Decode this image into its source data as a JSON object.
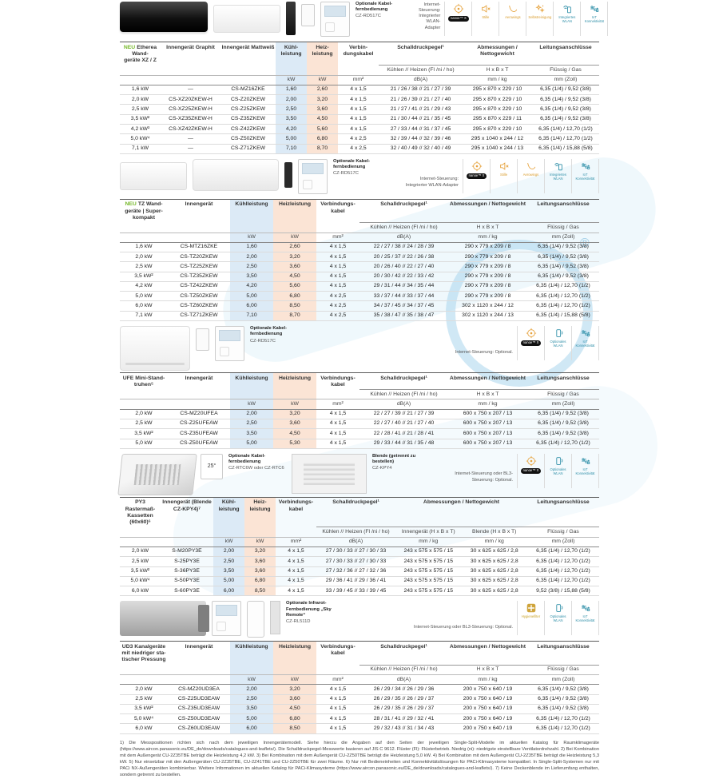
{
  "footnotes": "1) Die Messpositionen richten sich nach dem jeweiligen Innengerätemodell. Siehe hierzu die Angaben auf den Seiten der jeweiligen Single-Split-Modelle im aktuellen Katalog für Raumklimageräte (https://www.aircon.panasonic.eu/DE_de/downloads/catalogues-and-leaflets/). Die Schalldruckpegel-Messwerte basieren auf JIS C 9612. Flüster (Fl): Flüsterbetrieb. Niedrig (ni): niedrigste einstellbare Ventilatordrehzahl. 2) Bei Kombination mit dem Außengerät CU-2Z35TBE beträgt die Heizleistung 4,2 kW. 3) Bei Kombination mit dem Außengerät CU-2Z50TBE beträgt die Heizleistung 5,0 kW. 4) Bei Kombination mit dem Außengerät CU-2Z35TBE beträgt die Heizleistung 5,3 kW. 5) Nur einsetzbar mit den Außengeräten CU-2Z35TBE, CU-2Z41TBE und CU-2Z50TBE für zwei Räume. 6) Nur mit Bedieneinheiten und Konnektivitätslösungen für PACi-Klimasysteme kompatibel. In Single-Split-Systemen nur mit PACi NX-Außengeräten kombinierbar. Weitere Informationen im aktuellen Katalog für PACi-Klimasysteme (https://www.aircon.panasonic.eu/DE_de/downloads/catalogues-and-leaflets/). 7) Keine Deckenblende im Lieferumfang enthalten, sondern getrennt zu bestellen.",
  "colors": {
    "neu_green": "#76b82a",
    "cool_blue": "#dceaf6",
    "heat_peach": "#fbe4d5",
    "badge_orange": "#e6a23c",
    "badge_blue": "#2f8fa8",
    "badge_gold": "#cfa43b"
  },
  "sections": [
    {
      "id": "etherea-xz-z",
      "neu": "NEU",
      "title": "Etherea Wand-\ngeräte XZ / Z",
      "strip": [
        {
          "kind": "art",
          "type": "wall-black"
        },
        {
          "kind": "art",
          "type": "wall-white"
        },
        {
          "kind": "art",
          "type": "remote-dark"
        },
        {
          "kind": "art",
          "type": "remote-white-sm"
        },
        {
          "kind": "art",
          "type": "controller"
        },
        {
          "kind": "option",
          "title": "Optionale Kabel-fernbedienung",
          "model": "CZ-RD517C"
        }
      ],
      "note": "Internet-Steuerung:\nIntegrierter WLAN-Adapter",
      "badges": [
        {
          "icon": "target",
          "label": "nanoe™ X",
          "variant": "pill"
        },
        {
          "icon": "speaker-mute",
          "label": "Stille",
          "variant": "orange"
        },
        {
          "icon": "swoosh",
          "label": "Aerowings",
          "variant": "orange"
        },
        {
          "icon": "sparkles",
          "label": "Selbstreinigung",
          "variant": "orange"
        },
        {
          "icon": "remote-wifi",
          "label": "Integriertes WLAN",
          "variant": "blue"
        },
        {
          "icon": "usb",
          "label": "IoT Konnektivität",
          "variant": "blue"
        }
      ],
      "widths": [
        8.5,
        12.5,
        11.5,
        6.5,
        6.5,
        8.5,
        17.5,
        14.5,
        14
      ],
      "hl_blue": [
        3
      ],
      "hl_peach": [
        4
      ],
      "h1": [
        "",
        "Innengerät Graphit",
        "Innengerät Mattweiß",
        "Kühl-leistung",
        "Heiz-leistung",
        "Verbin-dungskabel",
        "Schalldruckpegel¹",
        "Abmessungen / Nettogewicht",
        "Leitungsanschlüsse"
      ],
      "h2": [
        "",
        "",
        "",
        "",
        "",
        "",
        "Kühlen // Heizen (Fl /ni / ho)",
        "H x B x T",
        "Flüssig / Gas"
      ],
      "h3": [
        "",
        "",
        "",
        "kW",
        "kW",
        "mm²",
        "dB(A)",
        "mm / kg",
        "mm (Zoll)"
      ],
      "rows": [
        [
          "1,6 kW",
          "—",
          "CS-MZ16ZKE",
          "1,60",
          "2,60",
          "4 x 1,5",
          "21 / 26 / 38 // 21 / 27 / 39",
          "295 x 870 x 229 / 10",
          "6,35 (1/4) / 9,52 (3/8)"
        ],
        [
          "2,0 kW",
          "CS-XZ20ZKEW-H",
          "CS-Z20ZKEW",
          "2,00",
          "3,20",
          "4 x 1,5",
          "21 / 26 / 39 // 21 / 27 / 40",
          "295 x 870 x 229 / 10",
          "6,35 (1/4) / 9,52 (3/8)"
        ],
        [
          "2,5 kW",
          "CS-XZ25ZKEW-H",
          "CS-Z25ZKEW",
          "2,50",
          "3,60",
          "4 x 1,5",
          "21 / 27 / 41 // 21 / 29 / 43",
          "295 x 870 x 229 / 10",
          "6,35 (1/4) / 9,52 (3/8)"
        ],
        [
          "3,5 kW²",
          "CS-XZ35ZKEW-H",
          "CS-Z35ZKEW",
          "3,50",
          "4,50",
          "4 x 1,5",
          "21 / 30 / 44 // 21 / 35 / 45",
          "295 x 870 x 229 / 11",
          "6,35 (1/4) / 9,52 (3/8)"
        ],
        [
          "4,2 kW³",
          "CS-XZ42ZKEW-H",
          "CS-Z42ZKEW",
          "4,20",
          "5,60",
          "4 x 1,5",
          "27 / 33 / 44 // 31 / 37 / 45",
          "295 x 870 x 229 / 10",
          "6,35 (1/4) / 12,70 (1/2)"
        ],
        [
          "5,0 kW⁴",
          "—",
          "CS-Z50ZKEW",
          "5,00",
          "6,80",
          "4 x 2,5",
          "32 / 39 / 44 // 32 / 39 / 46",
          "295 x 1040 x 244 / 12",
          "6,35 (1/4) / 12,70 (1/2)"
        ],
        [
          "7,1 kW",
          "—",
          "CS-Z71ZKEW",
          "7,10",
          "8,70",
          "4 x 2,5",
          "32 / 40 / 49 // 32 / 40 / 49",
          "295 x 1040 x 244 / 13",
          "6,35 (1/4) / 15,88 (5/8)"
        ]
      ]
    },
    {
      "id": "tz-wandgeraete",
      "neu": "NEU",
      "title": "TZ Wand-\ngeräte | Super-\nkompakt",
      "strip": [
        {
          "kind": "art",
          "type": "wall-white"
        },
        {
          "kind": "art",
          "type": "wall-white-lg"
        },
        {
          "kind": "art",
          "type": "remote-dark-sm"
        },
        {
          "kind": "art",
          "type": "controller"
        },
        {
          "kind": "option",
          "title": "Optionale Kabel-fernbedienung",
          "model": "CZ-RD517C"
        }
      ],
      "note": "Internet-Steuerung:\nIntegrierter WLAN-Adapter",
      "badges": [
        {
          "icon": "target",
          "label": "nanoe™ X",
          "variant": "pill"
        },
        {
          "icon": "speaker-mute",
          "label": "Stille",
          "variant": "orange"
        },
        {
          "icon": "swoosh",
          "label": "Aerowings",
          "variant": "orange"
        },
        {
          "icon": "remote-wifi",
          "label": "Integriertes WLAN",
          "variant": "blue"
        },
        {
          "icon": "usb",
          "label": "IoT Konnektivität",
          "variant": "blue"
        }
      ],
      "widths": [
        10,
        13,
        9,
        9,
        9,
        18.5,
        16.5,
        15
      ],
      "hl_blue": [
        2
      ],
      "hl_peach": [
        3
      ],
      "h1": [
        "",
        "Innengerät",
        "Kühlleistung",
        "Heizleistung",
        "Verbindungs-kabel",
        "Schalldruckpegel¹",
        "Abmessungen / Nettogewicht",
        "Leitungsanschlüsse"
      ],
      "h2": [
        "",
        "",
        "",
        "",
        "",
        "Kühlen // Heizen (Fl /ni / ho)",
        "H x B x T",
        "Flüssig / Gas"
      ],
      "h3": [
        "",
        "",
        "kW",
        "kW",
        "mm²",
        "dB(A)",
        "mm / kg",
        "mm (Zoll)"
      ],
      "rows": [
        [
          "1,6 kW",
          "CS-MTZ16ZKE",
          "1,60",
          "2,60",
          "4 x 1,5",
          "22 / 27 / 38 // 24 / 28 / 39",
          "290 x 779 x 209 / 8",
          "6,35 (1/4) / 9,52 (3/8)"
        ],
        [
          "2,0 kW",
          "CS-TZ20ZKEW",
          "2,00",
          "3,20",
          "4 x 1,5",
          "20 / 25 / 37 // 22 / 26 / 38",
          "290 x 779 x 209 / 8",
          "6,35 (1/4) / 9,52 (3/8)"
        ],
        [
          "2,5 kW",
          "CS-TZ25ZKEW",
          "2,50",
          "3,60",
          "4 x 1,5",
          "20 / 26 / 40 // 22 / 27 / 40",
          "290 x 779 x 209 / 8",
          "6,35 (1/4) / 9,52 (3/8)"
        ],
        [
          "3,5 kW²",
          "CS-TZ35ZKEW",
          "3,50",
          "4,50",
          "4 x 1,5",
          "20 / 30 / 42 // 22 / 33 / 42",
          "290 x 779 x 209 / 8",
          "6,35 (1/4) / 9,52 (3/8)"
        ],
        [
          "4,2 kW",
          "CS-TZ42ZKEW",
          "4,20",
          "5,60",
          "4 x 1,5",
          "29 / 31 / 44 // 34 / 35 / 44",
          "290 x 779 x 209 / 8",
          "6,35 (1/4) / 12,70 (1/2)"
        ],
        [
          "5,0 kW",
          "CS-TZ50ZKEW",
          "5,00",
          "6,80",
          "4 x 2,5",
          "33 / 37 / 44 // 33 / 37 / 44",
          "290 x 779 x 209 / 8",
          "6,35 (1/4) / 12,70 (1/2)"
        ],
        [
          "6,0 kW",
          "CS-TZ60ZKEW",
          "6,00",
          "8,50",
          "4 x 2,5",
          "34 / 37 / 45 // 34 / 37 / 45",
          "302 x 1120 x 244 / 12",
          "6,35 (1/4) / 12,70 (1/2)"
        ],
        [
          "7,1 kW",
          "CS-TZ71ZKEW",
          "7,10",
          "8,70",
          "4 x 2,5",
          "35 / 38 / 47 // 35 / 38 / 47",
          "302 x 1120 x 244 / 13",
          "6,35 (1/4) / 15,88 (5/8)"
        ]
      ]
    },
    {
      "id": "ufe-standtruhen",
      "neu": "",
      "title": "UFE Mini-Stand-\ntruhen⁵",
      "strip": [
        {
          "kind": "art",
          "type": "console"
        },
        {
          "kind": "art",
          "type": "remote-white-sm"
        },
        {
          "kind": "art",
          "type": "controller"
        },
        {
          "kind": "option",
          "title": "Optionale Kabel-fernbedienung",
          "model": "CZ-RD517C"
        }
      ],
      "note": "Internet-Steuerung: Optional.",
      "badges": [
        {
          "icon": "target",
          "label": "nanoe™ X",
          "variant": "pill"
        },
        {
          "icon": "phone-wifi",
          "label": "Optionales WLAN",
          "variant": "blue"
        },
        {
          "icon": "usb",
          "label": "IoT Konnektivität",
          "variant": "blue"
        }
      ],
      "widths": [
        10,
        13,
        9,
        9,
        9,
        18.5,
        16.5,
        15
      ],
      "hl_blue": [
        2
      ],
      "hl_peach": [
        3
      ],
      "h1": [
        "",
        "Innengerät",
        "Kühlleistung",
        "Heizleistung",
        "Verbindungs-kabel",
        "Schalldruckpegel¹",
        "Abmessungen / Nettogewicht",
        "Leitungsanschlüsse"
      ],
      "h2": [
        "",
        "",
        "",
        "",
        "",
        "Kühlen // Heizen (Fl /ni / ho)",
        "H x B x T",
        "Flüssig / Gas"
      ],
      "h3": [
        "",
        "",
        "kW",
        "kW",
        "mm²",
        "dB(A)",
        "mm / kg",
        "mm (Zoll)"
      ],
      "rows": [
        [
          "2,0 kW",
          "CS-MZ20UFEA",
          "2,00",
          "3,20",
          "4 x 1,5",
          "22 / 27 / 39 // 21 / 27 / 39",
          "600 x 750 x 207 / 13",
          "6,35 (1/4) / 9,52 (3/8)"
        ],
        [
          "2,5 kW",
          "CS-Z25UFEAW",
          "2,50",
          "3,60",
          "4 x 1,5",
          "22 / 27 / 40 // 21 / 27 / 40",
          "600 x 750 x 207 / 13",
          "6,35 (1/4) / 9,52 (3/8)"
        ],
        [
          "3,5 kW²",
          "CS-Z35UFEAW",
          "3,50",
          "4,50",
          "4 x 1,5",
          "22 / 28 / 41 // 21 / 28 / 41",
          "600 x 750 x 207 / 13",
          "6,35 (1/4) / 9,52 (3/8)"
        ],
        [
          "5,0 kW",
          "CS-Z50UFEAW",
          "5,00",
          "5,30",
          "4 x 1,5",
          "29 / 33 / 44 // 31 / 35 / 48",
          "600 x 750 x 207 / 13",
          "6,35 (1/4) / 12,70 (1/2)"
        ]
      ]
    },
    {
      "id": "py3-kassetten",
      "neu": "",
      "title": "PY3 Rastermaß-\nKassetten (60x60)⁶",
      "strip": [
        {
          "kind": "art",
          "type": "cassette-iso"
        },
        {
          "kind": "art",
          "type": "thermostat",
          "text": "25°"
        },
        {
          "kind": "option",
          "title": "Optionale Kabel-fernbedienung",
          "model": "CZ-RTC6W oder CZ-RTC6"
        },
        {
          "kind": "art",
          "type": "cassette-panel"
        },
        {
          "kind": "option",
          "title": "Blende (getrennt zu bestellen)",
          "model": "CZ-KPY4"
        }
      ],
      "note": "Internet-Steuerung oder BL3-Steuerung: Optional.",
      "badges": [
        {
          "icon": "target",
          "label": "nanoe™ X",
          "variant": "pill"
        },
        {
          "icon": "phone-wifi",
          "label": "Optionales WLAN",
          "variant": "blue"
        },
        {
          "icon": "usb",
          "label": "IoT Konnektivität",
          "variant": "blue"
        }
      ],
      "widths": [
        8.5,
        11,
        6.5,
        6.5,
        8.5,
        16.5,
        13.75,
        13.75,
        15
      ],
      "hl_blue": [
        2
      ],
      "hl_peach": [
        3
      ],
      "h1": [
        "",
        "Innengerät (Blende CZ-KPY4)⁷",
        "Kühl-leistung",
        "Heiz-leistung",
        "Verbindungs-kabel",
        "Schalldruckpegel¹",
        {
          "t": "Abmessungen / Nettogewicht",
          "s": 2
        },
        "Leitungsanschlüsse"
      ],
      "h2": [
        "",
        "",
        "",
        "",
        "",
        "Kühlen // Heizen (Fl /ni / ho)",
        "Innengerät (H x B x T)",
        "Blende (H x B x T)",
        "Flüssig / Gas"
      ],
      "h3": [
        "",
        "",
        "kW",
        "kW",
        "mm²",
        "dB(A)",
        "mm / kg",
        "mm / kg",
        "mm (Zoll)"
      ],
      "rows": [
        [
          "2,0 kW",
          "S-M20PY3E",
          "2,00",
          "3,20",
          "4 x 1,5",
          "27 / 30 / 33 // 27 / 30 / 33",
          "243 x 575 x 575 / 15",
          "30 x 625 x 625 / 2,8",
          "6,35 (1/4) / 12,70 (1/2)"
        ],
        [
          "2,5 kW",
          "S-25PY3E",
          "2,50",
          "3,60",
          "4 x 1,5",
          "27 / 30 / 33 // 27 / 30 / 33",
          "243 x 575 x 575 / 15",
          "30 x 625 x 625 / 2,8",
          "6,35 (1/4) / 12,70 (1/2)"
        ],
        [
          "3,5 kW²",
          "S-36PY3E",
          "3,50",
          "3,60",
          "4 x 1,5",
          "27 / 32 / 36 // 27 / 32 / 36",
          "243 x 575 x 575 / 15",
          "30 x 625 x 625 / 2,8",
          "6,35 (1/4) / 12,70 (1/2)"
        ],
        [
          "5,0 kW⁴",
          "S-50PY3E",
          "5,00",
          "6,80",
          "4 x 1,5",
          "29 / 36 / 41 // 29 / 36 / 41",
          "243 x 575 x 575 / 15",
          "30 x 625 x 625 / 2,8",
          "6,35 (1/4) / 12,70 (1/2)"
        ],
        [
          "6,0 kW",
          "S-60PY3E",
          "6,00",
          "8,50",
          "4 x 1,5",
          "33 / 39 / 45 // 33 / 39 / 45",
          "243 x 575 x 575 / 15",
          "30 x 625 x 625 / 2,8",
          "9,52 (3/8) / 15,88 (5/8)"
        ]
      ]
    },
    {
      "id": "ud3-kanalgeraete",
      "neu": "",
      "title": "UD3 Kanalgeräte\nmit niedriger sta-\ntischer Pressung",
      "strip": [
        {
          "kind": "art",
          "type": "duct"
        },
        {
          "kind": "art",
          "type": "controller"
        },
        {
          "kind": "art",
          "type": "remote-white"
        },
        {
          "kind": "art",
          "type": "remote-strip"
        },
        {
          "kind": "option",
          "title": "Optionale Infrarot-Fernbedienung „Sky Remote“",
          "model": "CZ-RL511D"
        }
      ],
      "note": "Internet-Steuerung oder BL3-Steuerung: Optional.",
      "badges": [
        {
          "icon": "plus-tile",
          "label": "Hygienefilter",
          "variant": "gold"
        },
        {
          "icon": "phone-wifi",
          "label": "Optionales WLAN",
          "variant": "blue"
        },
        {
          "icon": "usb",
          "label": "IoT Konnektivität",
          "variant": "blue"
        }
      ],
      "widths": [
        10,
        13,
        9,
        9,
        9,
        18.5,
        16.5,
        15
      ],
      "hl_blue": [
        2
      ],
      "hl_peach": [
        3
      ],
      "h1": [
        "",
        "Innengerät",
        "Kühlleistung",
        "Heizleistung",
        "Verbindungs-kabel",
        "Schalldruckpegel¹",
        "Abmessungen / Nettogewicht",
        "Leitungsanschlüsse"
      ],
      "h2": [
        "",
        "",
        "",
        "",
        "",
        "Kühlen // Heizen (Fl /ni / ho)",
        "H x B x T",
        "Flüssig / Gas"
      ],
      "h3": [
        "",
        "",
        "kW",
        "kW",
        "mm²",
        "dB(A)",
        "mm / kg",
        "mm (Zoll)"
      ],
      "rows": [
        [
          "2,0 kW",
          "CS-MZ20UD3EA",
          "2,00",
          "3,20",
          "4 x 1,5",
          "26 / 29 / 34 // 26 / 29 / 36",
          "200 x 750 x 640 / 19",
          "6,35 (1/4) / 9,52 (3/8)"
        ],
        [
          "2,5 kW",
          "CS-Z25UD3EAW",
          "2,50",
          "3,60",
          "4 x 1,5",
          "26 / 29 / 35 // 26 / 29 / 37",
          "200 x 750 x 640 / 19",
          "6,35 (1/4) / 9,52 (3/8)"
        ],
        [
          "3,5 kW²",
          "CS-Z35UD3EAW",
          "3,50",
          "4,50",
          "4 x 1,5",
          "26 / 29 / 35 // 26 / 29 / 37",
          "200 x 750 x 640 / 19",
          "6,35 (1/4) / 9,52 (3/8)"
        ],
        [
          "5,0 kW⁴",
          "CS-Z50UD3EAW",
          "5,00",
          "6,80",
          "4 x 1,5",
          "28 / 31 / 41 // 29 / 32 / 41",
          "200 x 750 x 640 / 19",
          "6,35 (1/4) / 12,70 (1/2)"
        ],
        [
          "6,0 kW",
          "CS-Z60UD3EAW",
          "6,00",
          "8,50",
          "4 x 1,5",
          "29 / 32 / 43 // 31 / 34 / 43",
          "200 x 750 x 640 / 19",
          "6,35 (1/4) / 12,70 (1/2)"
        ]
      ]
    }
  ]
}
